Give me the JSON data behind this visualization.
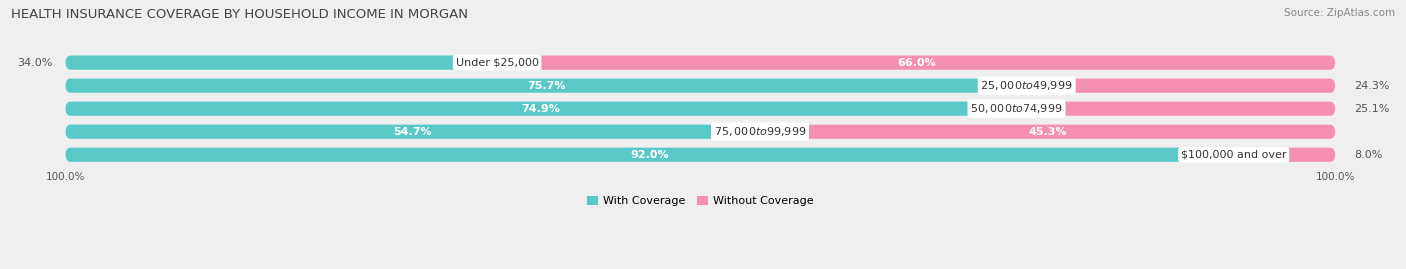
{
  "title": "HEALTH INSURANCE COVERAGE BY HOUSEHOLD INCOME IN MORGAN",
  "source": "Source: ZipAtlas.com",
  "categories": [
    "Under $25,000",
    "$25,000 to $49,999",
    "$50,000 to $74,999",
    "$75,000 to $99,999",
    "$100,000 and over"
  ],
  "with_coverage": [
    34.0,
    75.7,
    74.9,
    54.7,
    92.0
  ],
  "without_coverage": [
    66.0,
    24.3,
    25.1,
    45.3,
    8.0
  ],
  "color_with": "#5BC8C8",
  "color_without": "#F48FB1",
  "bg_color": "#efefef",
  "row_bg": "#e4e4e4",
  "title_fontsize": 9.5,
  "source_fontsize": 7.5,
  "label_fontsize": 8.0,
  "category_fontsize": 8.0
}
